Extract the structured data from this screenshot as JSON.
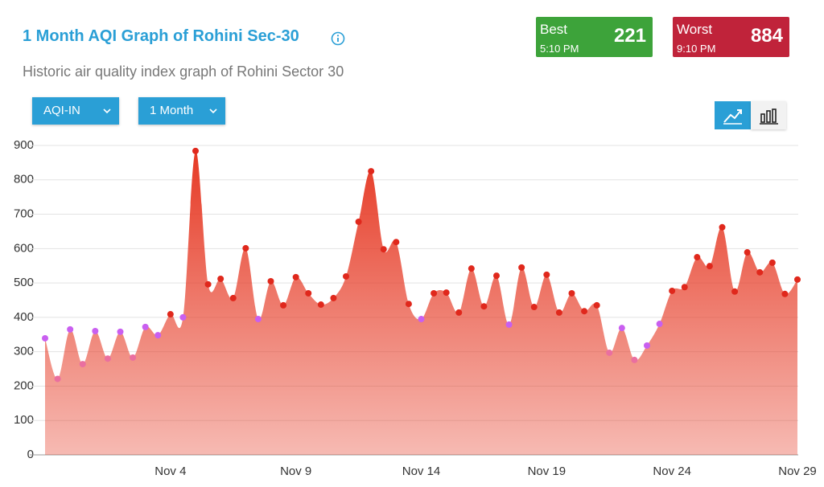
{
  "header": {
    "title": "1 Month AQI Graph of Rohini Sec-30",
    "subtitle": "Historic air quality index graph of Rohini Sector 30"
  },
  "controls": {
    "metric": "AQI-IN",
    "period": "1 Month"
  },
  "best": {
    "label": "Best",
    "time": "5:10 PM",
    "value": 221
  },
  "worst": {
    "label": "Worst",
    "time": "9:10 PM",
    "value": 884
  },
  "chart_data": {
    "type": "area",
    "categories": [
      null,
      null,
      null,
      null,
      null,
      null,
      null,
      null,
      null,
      null,
      "Nov 4",
      null,
      null,
      null,
      null,
      null,
      null,
      null,
      null,
      null,
      "Nov 9",
      null,
      null,
      null,
      null,
      null,
      null,
      null,
      null,
      null,
      "Nov 14",
      null,
      null,
      null,
      null,
      null,
      null,
      null,
      null,
      null,
      "Nov 19",
      null,
      null,
      null,
      null,
      null,
      null,
      null,
      null,
      null,
      "Nov 24",
      null,
      null,
      null,
      null,
      null,
      null,
      null,
      null,
      null,
      "Nov 29"
    ],
    "series": [
      {
        "color": "#e63a25",
        "values": [
          339,
          221,
          365,
          264,
          360,
          280,
          358,
          283,
          372,
          348,
          409,
          400,
          884,
          496,
          512,
          456,
          601,
          395,
          505,
          435,
          517,
          470,
          437,
          456,
          519,
          678,
          825,
          598,
          619,
          439,
          395,
          470,
          472,
          414,
          542,
          432,
          521,
          379,
          545,
          430,
          524,
          414,
          470,
          418,
          435,
          297,
          369,
          276,
          318,
          381,
          477,
          488,
          575,
          549,
          662,
          475,
          589,
          531,
          559,
          468,
          510
        ],
        "point_colors": [
          "#c95ff0",
          "#ea6fa0",
          "#c95ff0",
          "#ea6fa0",
          "#c95ff0",
          "#ea6fa0",
          "#c95ff0",
          "#ea6fa0",
          "#c95ff0",
          "#c95ff0",
          "#e0281c",
          "#c95ff0",
          "#e0281c",
          "#e0281c",
          "#e0281c",
          "#e0281c",
          "#e0281c",
          "#c95ff0",
          "#e0281c",
          "#e0281c",
          "#e0281c",
          "#e0281c",
          "#e0281c",
          "#e0281c",
          "#e0281c",
          "#e0281c",
          "#e0281c",
          "#e0281c",
          "#e0281c",
          "#e0281c",
          "#c95ff0",
          "#e0281c",
          "#e0281c",
          "#e0281c",
          "#e0281c",
          "#e0281c",
          "#e0281c",
          "#c95ff0",
          "#e0281c",
          "#e0281c",
          "#e0281c",
          "#e0281c",
          "#e0281c",
          "#e0281c",
          "#e0281c",
          "#ea6fa0",
          "#c95ff0",
          "#ea6fa0",
          "#c95ff0",
          "#c95ff0",
          "#e0281c",
          "#e0281c",
          "#e0281c",
          "#e0281c",
          "#e0281c",
          "#e0281c",
          "#e0281c",
          "#e0281c",
          "#e0281c",
          "#e0281c",
          "#e0281c"
        ]
      }
    ],
    "ylim": [
      0,
      900
    ],
    "yticks": [
      0,
      100,
      200,
      300,
      400,
      500,
      600,
      700,
      800,
      900
    ],
    "grid": true
  }
}
